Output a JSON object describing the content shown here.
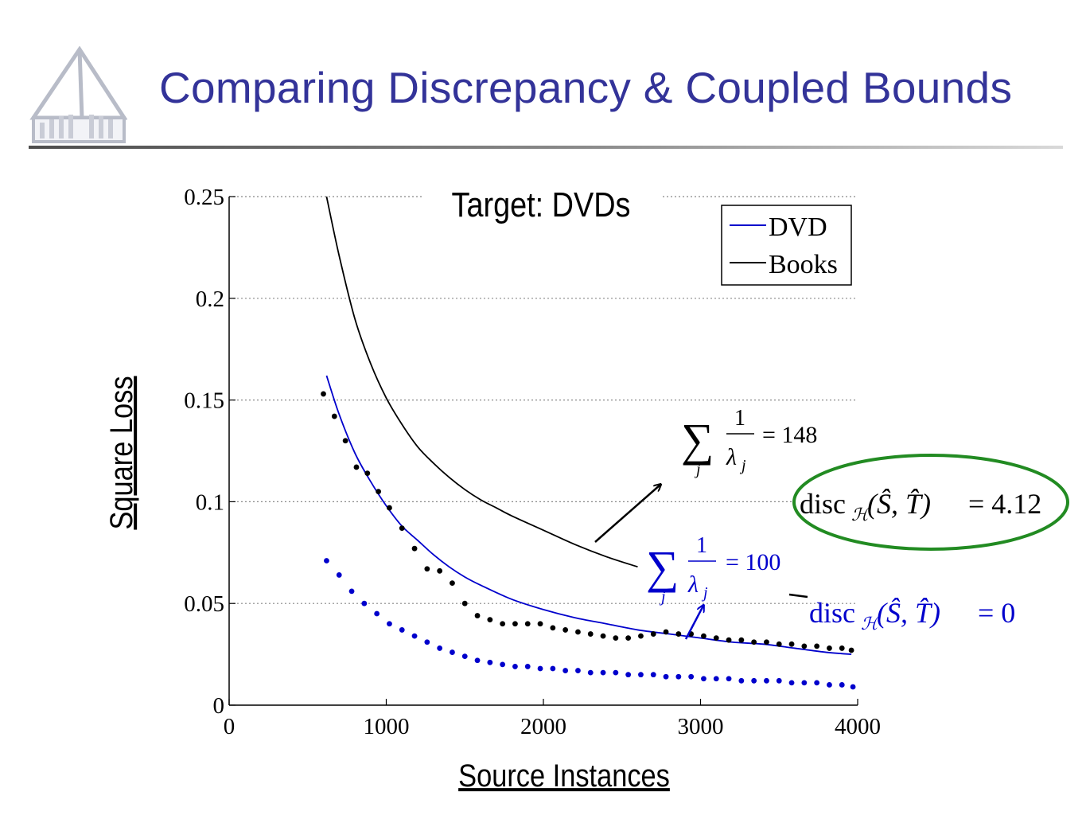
{
  "slide": {
    "title": "Comparing Discrepancy & Coupled Bounds",
    "title_color": "#333399"
  },
  "logo": {
    "icon": "chapel-logo-icon"
  },
  "chart_data": {
    "type": "line",
    "title": "Target: DVDs",
    "xlabel": "Source Instances",
    "ylabel": "Square Loss",
    "xlim": [
      0,
      4000
    ],
    "ylim": [
      0,
      0.25
    ],
    "x_ticks": [
      0,
      1000,
      2000,
      3000,
      4000
    ],
    "x_tick_labels": [
      "0",
      "1000",
      "2000",
      "3000",
      "4000"
    ],
    "y_ticks": [
      0,
      0.05,
      0.1,
      0.15,
      0.2,
      0.25
    ],
    "y_tick_labels": [
      "0",
      "0.05",
      "0.1",
      "0.15",
      "0.2",
      "0.25"
    ],
    "grid": "horizontal dotted",
    "legend_position": "top-right",
    "series": [
      {
        "name": "DVD",
        "style": "line",
        "color": "#0000cc",
        "x": [
          620,
          700,
          800,
          900,
          1000,
          1100,
          1200,
          1300,
          1400,
          1500,
          1600,
          1800,
          2000,
          2200,
          2400,
          2600,
          2800,
          3000,
          3200,
          3400,
          3600,
          3800,
          3960
        ],
        "y": [
          0.162,
          0.143,
          0.124,
          0.11,
          0.098,
          0.088,
          0.081,
          0.074,
          0.068,
          0.063,
          0.059,
          0.052,
          0.047,
          0.043,
          0.04,
          0.037,
          0.035,
          0.033,
          0.031,
          0.03,
          0.028,
          0.026,
          0.025
        ]
      },
      {
        "name": "Books",
        "style": "line",
        "color": "#000000",
        "x": [
          620,
          700,
          800,
          900,
          1000,
          1100,
          1200,
          1300,
          1400,
          1500,
          1600,
          1700,
          1800,
          2000,
          2200,
          2400,
          2600
        ],
        "y": [
          0.25,
          0.221,
          0.19,
          0.168,
          0.151,
          0.138,
          0.127,
          0.119,
          0.112,
          0.106,
          0.101,
          0.097,
          0.093,
          0.086,
          0.079,
          0.073,
          0.068
        ]
      },
      {
        "style": "dots",
        "color": "#0000cc",
        "x": [
          620,
          700,
          780,
          860,
          940,
          1020,
          1100,
          1180,
          1260,
          1340,
          1420,
          1500,
          1580,
          1660,
          1740,
          1820,
          1900,
          1980,
          2060,
          2140,
          2220,
          2300,
          2380,
          2460,
          2540,
          2620,
          2700,
          2780,
          2860,
          2940,
          3020,
          3100,
          3180,
          3260,
          3340,
          3420,
          3500,
          3580,
          3660,
          3740,
          3820,
          3900,
          3970
        ],
        "y": [
          0.071,
          0.064,
          0.056,
          0.05,
          0.045,
          0.04,
          0.037,
          0.034,
          0.031,
          0.028,
          0.026,
          0.024,
          0.022,
          0.021,
          0.02,
          0.019,
          0.019,
          0.018,
          0.018,
          0.017,
          0.017,
          0.016,
          0.016,
          0.016,
          0.015,
          0.015,
          0.015,
          0.014,
          0.014,
          0.014,
          0.013,
          0.013,
          0.013,
          0.012,
          0.012,
          0.012,
          0.012,
          0.011,
          0.011,
          0.011,
          0.01,
          0.01,
          0.009
        ]
      },
      {
        "style": "dots",
        "color": "#000000",
        "x": [
          600,
          670,
          740,
          810,
          880,
          950,
          1020,
          1100,
          1180,
          1260,
          1340,
          1420,
          1500,
          1580,
          1660,
          1740,
          1820,
          1900,
          1980,
          2060,
          2140,
          2220,
          2300,
          2380,
          2460,
          2540,
          2620,
          2700,
          2780,
          2860,
          2940,
          3020,
          3100,
          3180,
          3260,
          3340,
          3420,
          3500,
          3580,
          3660,
          3740,
          3820,
          3900,
          3960
        ],
        "y": [
          0.153,
          0.142,
          0.13,
          0.117,
          0.114,
          0.105,
          0.097,
          0.087,
          0.077,
          0.067,
          0.066,
          0.06,
          0.05,
          0.044,
          0.042,
          0.04,
          0.04,
          0.04,
          0.04,
          0.038,
          0.037,
          0.036,
          0.035,
          0.034,
          0.033,
          0.033,
          0.034,
          0.035,
          0.036,
          0.035,
          0.035,
          0.034,
          0.033,
          0.032,
          0.032,
          0.031,
          0.031,
          0.03,
          0.03,
          0.029,
          0.029,
          0.028,
          0.028,
          0.027
        ]
      }
    ],
    "annotations": [
      {
        "id": "books-sum",
        "color": "#000000",
        "symbol": "∑",
        "index": "j",
        "numerator": "1",
        "denominator": "λ",
        "denominator_sub": "j",
        "relation": "= 148"
      },
      {
        "id": "dvd-sum",
        "color": "#0000cc",
        "symbol": "∑",
        "index": "j",
        "numerator": "1",
        "denominator": "λ",
        "denominator_sub": "j",
        "relation": "= 100"
      },
      {
        "id": "books-disc",
        "color": "#000000",
        "circle_color": "#228b22",
        "fn": "disc",
        "fn_sub": "ℋ",
        "args": "(Ŝ, T̂)",
        "relation": "= 4.12"
      },
      {
        "id": "dvd-disc",
        "color": "#0000cc",
        "fn": "disc",
        "fn_sub": "ℋ",
        "args": "(Ŝ, T̂)",
        "relation": "= 0"
      }
    ]
  }
}
